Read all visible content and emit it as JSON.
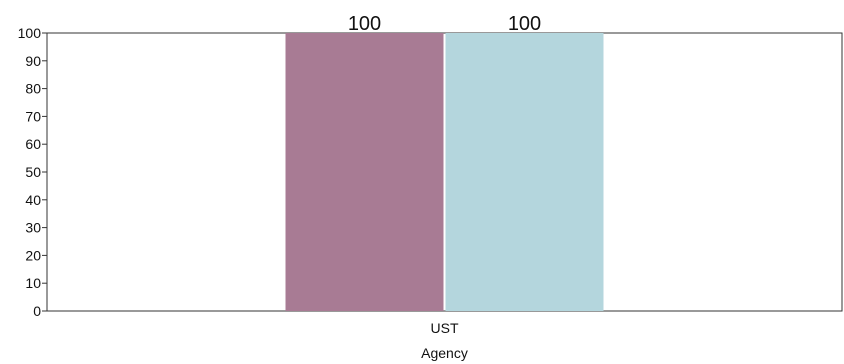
{
  "chart_data": {
    "type": "bar",
    "categories": [
      "UST"
    ],
    "xlabel": "Agency",
    "ylabel": "",
    "ylim": [
      0,
      100
    ],
    "yticks": [
      0,
      10,
      20,
      30,
      40,
      50,
      60,
      70,
      80,
      90,
      100
    ],
    "grid": false,
    "legend": "none",
    "series": [
      {
        "values": [
          100
        ],
        "color": "#a87b94"
      },
      {
        "values": [
          100
        ],
        "color": "#b4d6dd"
      }
    ],
    "data_labels": [
      "100",
      "100"
    ]
  }
}
